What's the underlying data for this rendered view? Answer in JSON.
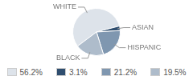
{
  "chart_data": {
    "type": "pie",
    "categories": [
      "WHITE",
      "ASIAN",
      "HISPANIC",
      "BLACK"
    ],
    "values": [
      56.2,
      3.1,
      21.2,
      19.5
    ],
    "value_labels": [
      "56.2%",
      "3.1%",
      "21.2%",
      "19.5%"
    ],
    "colors": [
      "#dde3ea",
      "#2f4e6f",
      "#7f97b0",
      "#aebccb"
    ],
    "legend": "bottom"
  }
}
